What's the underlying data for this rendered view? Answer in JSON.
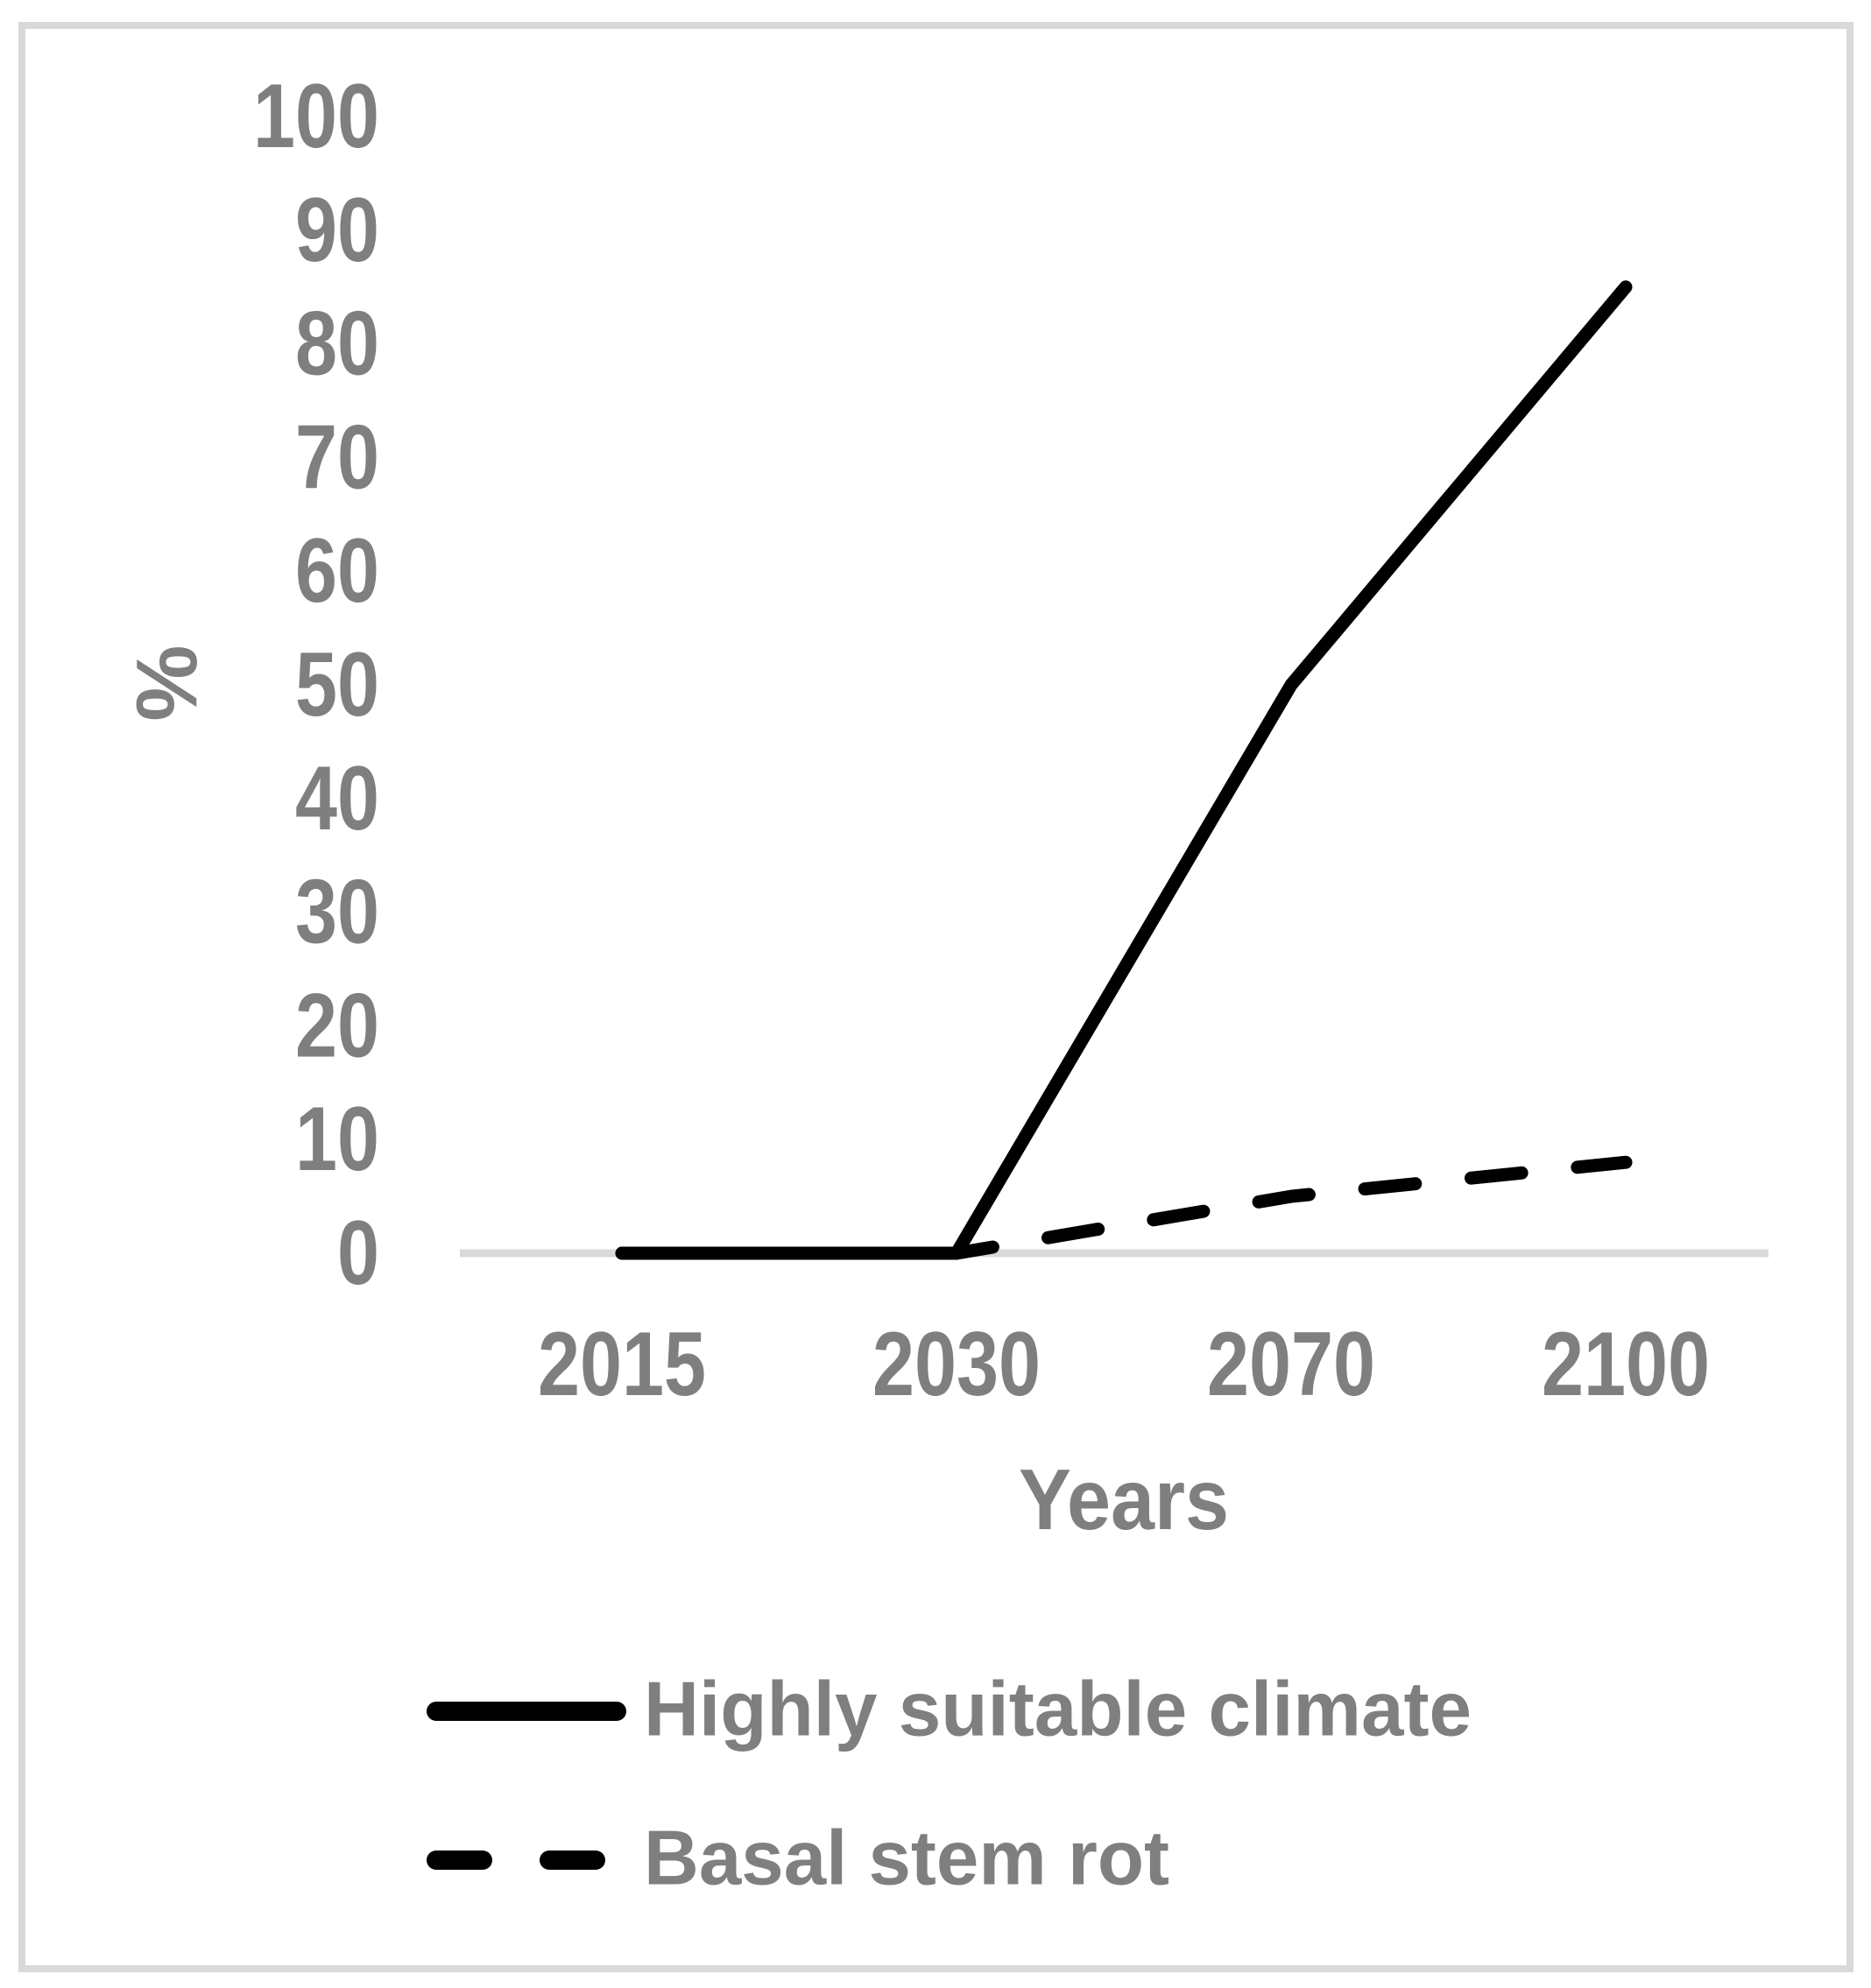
{
  "chart_data": {
    "type": "line",
    "categories": [
      "2015",
      "2030",
      "2070",
      "2100"
    ],
    "series": [
      {
        "name": "Highly suitable climate",
        "line_style": "solid",
        "color": "#000000",
        "values": [
          0,
          0,
          50,
          85
        ]
      },
      {
        "name": "Basal stem rot",
        "line_style": "dashed",
        "color": "#000000",
        "values": [
          0,
          0,
          5,
          8
        ]
      }
    ],
    "xlabel": "Years",
    "ylabel": "%",
    "ylim": [
      0,
      100
    ],
    "ytick_interval": 10,
    "grid": false,
    "legend_position": "bottom-left"
  },
  "axis": {
    "y_title": "%",
    "x_title": "Years",
    "y_tick_labels": [
      "100",
      "90",
      "80",
      "70",
      "60",
      "50",
      "40",
      "30",
      "20",
      "10",
      "0"
    ],
    "x_tick_labels": [
      "2015",
      "2030",
      "2070",
      "2100"
    ]
  },
  "legend": {
    "items": [
      {
        "label": "Highly suitable climate",
        "swatch": "solid-line"
      },
      {
        "label": "Basal stem rot",
        "swatch": "dashed-line"
      }
    ]
  },
  "colors": {
    "background": "#ffffff",
    "text": "#7f7f7f",
    "axis_line": "#d9d9d9",
    "frame": "#d9d9d9",
    "series_line": "#000000"
  }
}
